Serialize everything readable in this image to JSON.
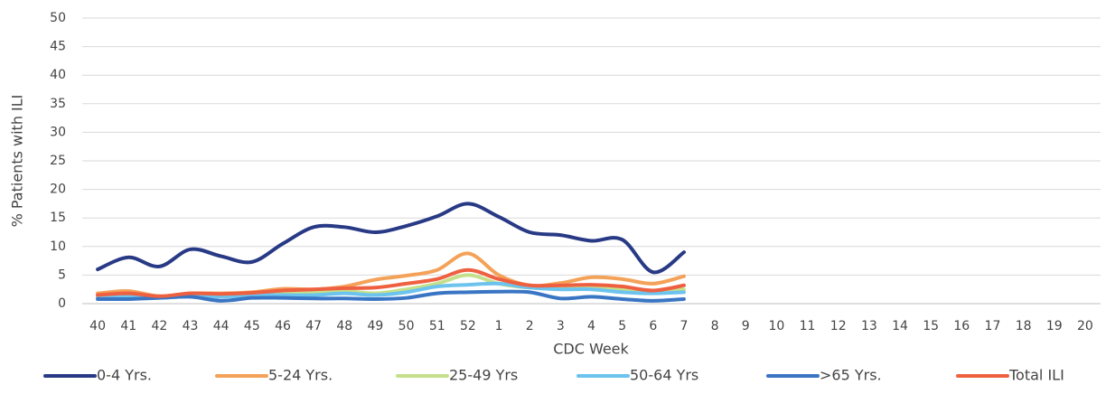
{
  "chart_data": {
    "type": "line",
    "x_label": "CDC Week",
    "y_label": "% Patients with ILI",
    "categories": [
      "40",
      "41",
      "42",
      "43",
      "44",
      "45",
      "46",
      "47",
      "48",
      "49",
      "50",
      "51",
      "52",
      "1",
      "2",
      "3",
      "4",
      "5",
      "6",
      "7",
      "8",
      "9",
      "10",
      "11",
      "12",
      "13",
      "14",
      "15",
      "16",
      "17",
      "18",
      "19",
      "20"
    ],
    "series": [
      {
        "name": "0-4 Yrs.",
        "color": "#283a85",
        "values": [
          6,
          8.1,
          6.5,
          9.5,
          8.3,
          7.3,
          10.5,
          13.4,
          13.4,
          12.5,
          13.6,
          15.3,
          17.5,
          15.2,
          12.5,
          12,
          11,
          11.2,
          5.5,
          9,
          null,
          null,
          null,
          null,
          null,
          null,
          null,
          null,
          null,
          null,
          null,
          null,
          null
        ]
      },
      {
        "name": "5-24 Yrs.",
        "color": "#f4a259",
        "values": [
          1.8,
          2.2,
          1.3,
          1.8,
          1.8,
          2,
          2.6,
          2.5,
          3,
          4.2,
          4.9,
          5.9,
          8.8,
          5,
          3.2,
          3.6,
          4.6,
          4.3,
          3.5,
          4.8,
          null,
          null,
          null,
          null,
          null,
          null,
          null,
          null,
          null,
          null,
          null,
          null,
          null
        ]
      },
      {
        "name": "25-49 Yrs",
        "color": "#c5e08a",
        "values": [
          1.2,
          1.5,
          1.2,
          1.5,
          1.5,
          1.8,
          2,
          2,
          2.2,
          1.8,
          2.5,
          3.5,
          5,
          3.5,
          2.8,
          2.8,
          2.8,
          2.5,
          2.2,
          2.5,
          null,
          null,
          null,
          null,
          null,
          null,
          null,
          null,
          null,
          null,
          null,
          null,
          null
        ]
      },
      {
        "name": "50-64 Yrs",
        "color": "#6cc3ee",
        "values": [
          1,
          1.2,
          1,
          1.3,
          1.2,
          1.5,
          1.5,
          1.5,
          1.8,
          1.5,
          2,
          3,
          3.3,
          3.5,
          2.8,
          2.5,
          2.5,
          2,
          1.8,
          2,
          null,
          null,
          null,
          null,
          null,
          null,
          null,
          null,
          null,
          null,
          null,
          null,
          null
        ]
      },
      {
        "name": ">65 Yrs.",
        "color": "#3a75c4",
        "values": [
          0.8,
          0.8,
          1,
          1.2,
          0.5,
          1,
          1,
          0.9,
          0.9,
          0.8,
          1,
          1.8,
          2,
          2.1,
          2,
          0.9,
          1.2,
          0.8,
          0.5,
          0.8,
          null,
          null,
          null,
          null,
          null,
          null,
          null,
          null,
          null,
          null,
          null,
          null,
          null
        ]
      },
      {
        "name": "Total ILI",
        "color": "#ee6040",
        "values": [
          1.5,
          1.8,
          1.3,
          1.8,
          1.7,
          1.9,
          2.3,
          2.5,
          2.7,
          2.8,
          3.5,
          4.3,
          5.9,
          4.3,
          3.2,
          3.2,
          3.3,
          3,
          2.3,
          3.2,
          null,
          null,
          null,
          null,
          null,
          null,
          null,
          null,
          null,
          null,
          null,
          null,
          null
        ]
      }
    ],
    "ylim": [
      0,
      50
    ],
    "yticks": [
      0,
      5,
      10,
      15,
      20,
      25,
      30,
      35,
      40,
      45,
      50
    ],
    "grid": true,
    "legend": "bottom"
  }
}
